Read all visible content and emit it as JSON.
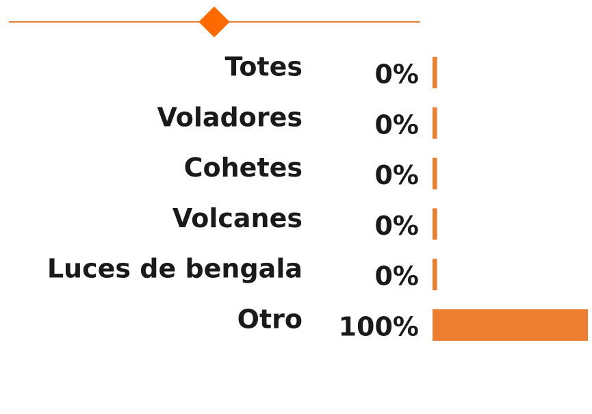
{
  "chart_data": {
    "type": "bar",
    "orientation": "horizontal",
    "categories": [
      "Totes",
      "Voladores",
      "Cohetes",
      "Volcanes",
      "Luces de bengala",
      "Otro"
    ],
    "values": [
      0,
      0,
      0,
      0,
      0,
      100
    ],
    "value_labels": [
      "0%",
      "0%",
      "0%",
      "0%",
      "0%",
      "100%"
    ],
    "color": "#ed7d31",
    "xlim": [
      -3,
      100
    ]
  }
}
